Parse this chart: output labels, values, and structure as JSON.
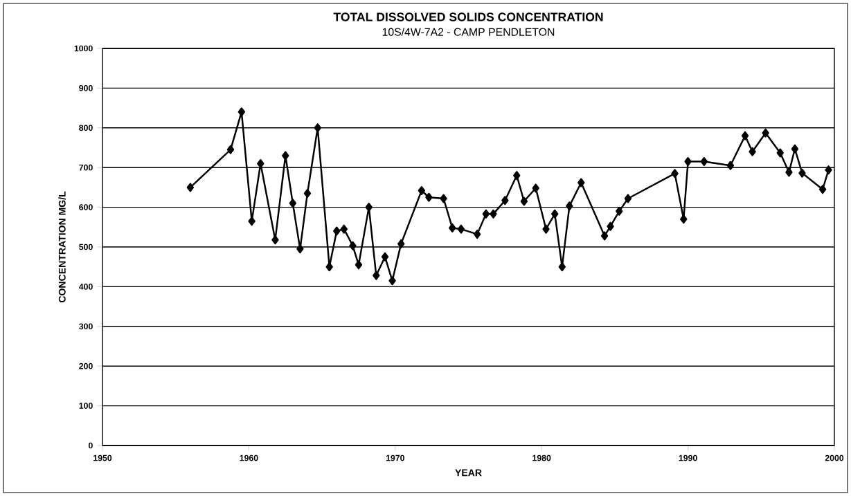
{
  "chart_data": {
    "type": "line",
    "title": "TOTAL DISSOLVED SOLIDS CONCENTRATION",
    "subtitle": "10S/4W-7A2 - CAMP PENDLETON",
    "xlabel": "YEAR",
    "ylabel": "CONCENTRATION MG/L",
    "x": [
      1956.0,
      1958.75,
      1959.5,
      1960.2,
      1960.8,
      1961.8,
      1962.5,
      1963.0,
      1963.5,
      1964.0,
      1964.7,
      1965.5,
      1966.0,
      1966.5,
      1967.1,
      1967.5,
      1968.2,
      1968.7,
      1969.3,
      1969.8,
      1970.4,
      1971.8,
      1972.3,
      1973.3,
      1973.9,
      1974.5,
      1975.6,
      1976.2,
      1976.7,
      1977.5,
      1978.3,
      1978.8,
      1979.6,
      1980.3,
      1980.9,
      1981.4,
      1981.9,
      1982.7,
      1984.3,
      1984.7,
      1985.3,
      1985.9,
      1989.1,
      1989.7,
      1990.0,
      1991.1,
      1992.9,
      1993.9,
      1994.4,
      1995.3,
      1996.3,
      1996.9,
      1997.3,
      1997.8,
      1999.2,
      1999.6
    ],
    "series": [
      {
        "color": "#000000",
        "values": [
          650,
          745,
          840,
          565,
          710,
          518,
          730,
          610,
          495,
          635,
          800,
          450,
          540,
          545,
          503,
          455,
          600,
          428,
          475,
          415,
          508,
          642,
          625,
          622,
          548,
          545,
          532,
          583,
          583,
          617,
          680,
          615,
          648,
          545,
          583,
          450,
          603,
          662,
          528,
          552,
          590,
          622,
          685,
          570,
          715,
          715,
          705,
          780,
          740,
          787,
          737,
          688,
          747,
          686,
          645,
          694
        ]
      }
    ],
    "xlim": [
      1950,
      2000
    ],
    "xticks": [
      1950,
      1960,
      1970,
      1980,
      1990,
      2000
    ],
    "ylim": [
      0,
      1000
    ],
    "yticks": [
      0,
      100,
      200,
      300,
      400,
      500,
      600,
      700,
      800,
      900,
      1000
    ],
    "grid": "y",
    "marker": "diamond",
    "line_style": "solid"
  }
}
